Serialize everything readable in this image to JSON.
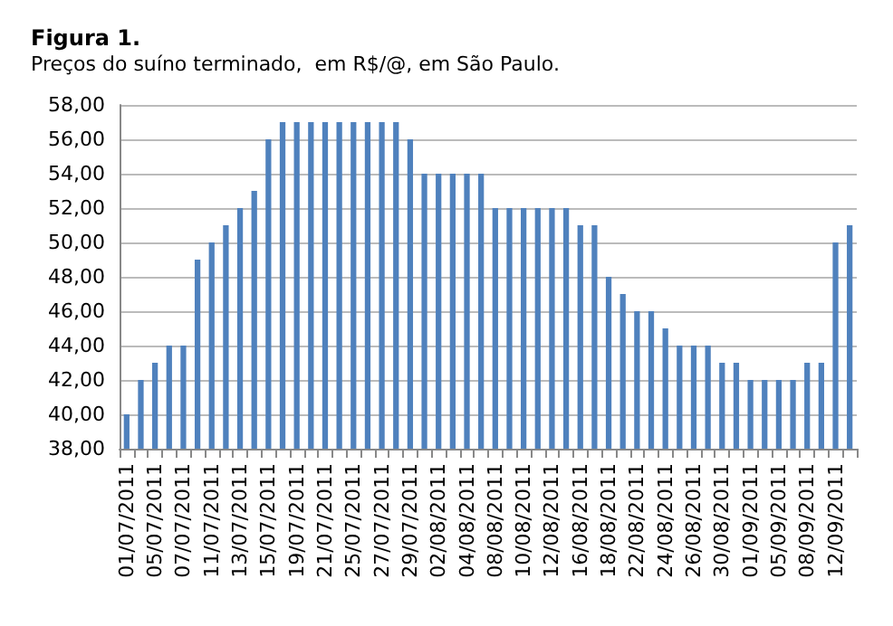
{
  "chart_data": {
    "type": "bar",
    "title": "Figura 1.",
    "subtitle": "Preços do suíno terminado,  em R$/@, em São Paulo.",
    "categories": [
      "01/07/2011",
      null,
      "05/07/2011",
      null,
      "07/07/2011",
      null,
      "11/07/2011",
      null,
      "13/07/2011",
      null,
      "15/07/2011",
      null,
      "19/07/2011",
      null,
      "21/07/2011",
      null,
      "25/07/2011",
      null,
      "27/07/2011",
      null,
      "29/07/2011",
      null,
      "02/08/2011",
      null,
      "04/08/2011",
      null,
      "08/08/2011",
      null,
      "10/08/2011",
      null,
      "12/08/2011",
      null,
      "16/08/2011",
      null,
      "18/08/2011",
      null,
      "22/08/2011",
      null,
      "24/08/2011",
      null,
      "26/08/2011",
      null,
      "30/08/2011",
      null,
      "01/09/2011",
      null,
      "05/09/2011",
      null,
      "08/09/2011",
      null,
      "12/09/2011",
      null
    ],
    "values": [
      40,
      42,
      43,
      44,
      44,
      49,
      50,
      51,
      52,
      53,
      56,
      57,
      57,
      57,
      57,
      57,
      57,
      57,
      57,
      57,
      56,
      54,
      54,
      54,
      54,
      54,
      52,
      52,
      52,
      52,
      52,
      52,
      51,
      51,
      48,
      47,
      46,
      46,
      45,
      44,
      44,
      44,
      43,
      43,
      42,
      42,
      42,
      42,
      43,
      43,
      50,
      51
    ],
    "color": "#4f81bd",
    "ylim": [
      38,
      58
    ],
    "yticks": [
      {
        "value": 38,
        "label": "38,00"
      },
      {
        "value": 40,
        "label": "40,00"
      },
      {
        "value": 42,
        "label": "42,00"
      },
      {
        "value": 44,
        "label": "44,00"
      },
      {
        "value": 46,
        "label": "46,00"
      },
      {
        "value": 48,
        "label": "48,00"
      },
      {
        "value": 50,
        "label": "50,00"
      },
      {
        "value": 52,
        "label": "52,00"
      },
      {
        "value": 54,
        "label": "54,00"
      },
      {
        "value": 56,
        "label": "56,00"
      },
      {
        "value": 58,
        "label": "58,00"
      }
    ],
    "grid": "y"
  }
}
